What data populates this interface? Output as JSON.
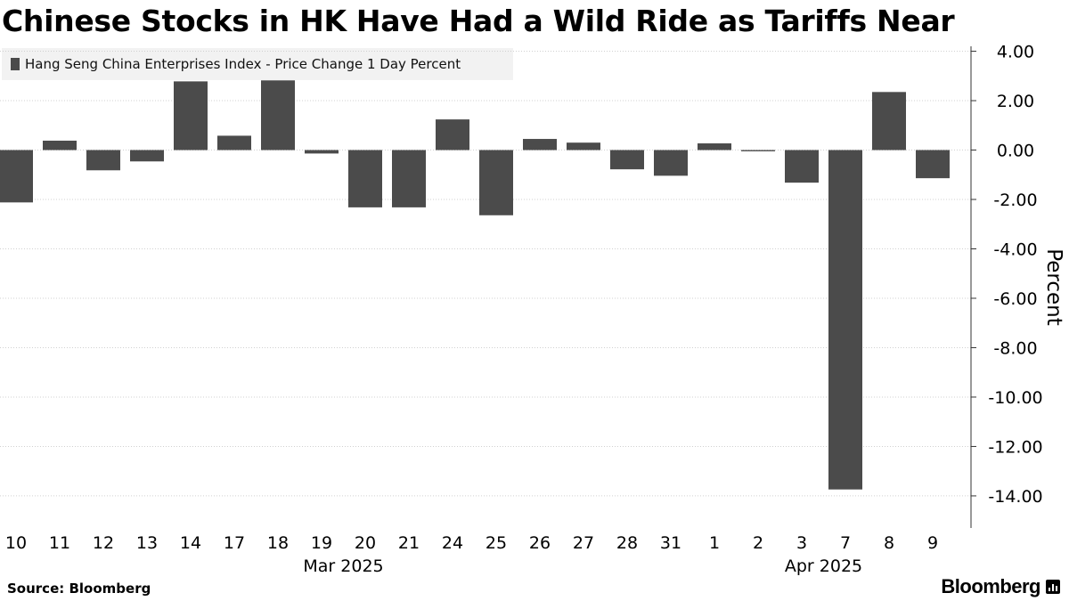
{
  "title": "Chinese Stocks in HK Have Had a Wild Ride as Tariffs Near",
  "source": "Source: Bloomberg",
  "brand": "Bloomberg",
  "colors": {
    "bar": "#4b4b4b",
    "grid": "#d0d0d0",
    "axis": "#333333",
    "legend_bg": "#f2f2f2"
  },
  "chart_data": {
    "type": "bar",
    "legend": "Hang Seng China Enterprises Index - Price Change 1 Day Percent",
    "legend_position": "top-left",
    "ylabel": "Percent",
    "y_axis_side": "right",
    "ylim": [
      -15.3,
      4.2
    ],
    "yticks": [
      4.0,
      2.0,
      0.0,
      -2.0,
      -4.0,
      -6.0,
      -8.0,
      -10.0,
      -12.0,
      -14.0
    ],
    "ytick_labels": [
      "4.00",
      "2.00",
      "0.00",
      "-2.00",
      "-4.00",
      "-6.00",
      "-8.00",
      "-10.00",
      "-12.00",
      "-14.00"
    ],
    "grid": "horizontal, dotted",
    "categories": [
      "10",
      "11",
      "12",
      "13",
      "14",
      "17",
      "18",
      "19",
      "20",
      "21",
      "24",
      "25",
      "26",
      "27",
      "28",
      "31",
      "1",
      "2",
      "3",
      "7",
      "8",
      "9"
    ],
    "month_labels": [
      {
        "label": "Mar 2025",
        "start_index": 0,
        "end_index": 15
      },
      {
        "label": "Apr 2025",
        "start_index": 16,
        "end_index": 21
      }
    ],
    "series": [
      {
        "name": "Hang Seng China Enterprises Index - Price Change 1 Day Percent",
        "values": [
          -2.12,
          0.38,
          -0.82,
          -0.46,
          2.78,
          0.58,
          2.82,
          -0.14,
          -2.32,
          -2.32,
          1.24,
          -2.64,
          0.45,
          0.3,
          -0.78,
          -1.04,
          0.27,
          -0.05,
          -1.32,
          -13.74,
          2.35,
          -1.14
        ]
      }
    ]
  }
}
